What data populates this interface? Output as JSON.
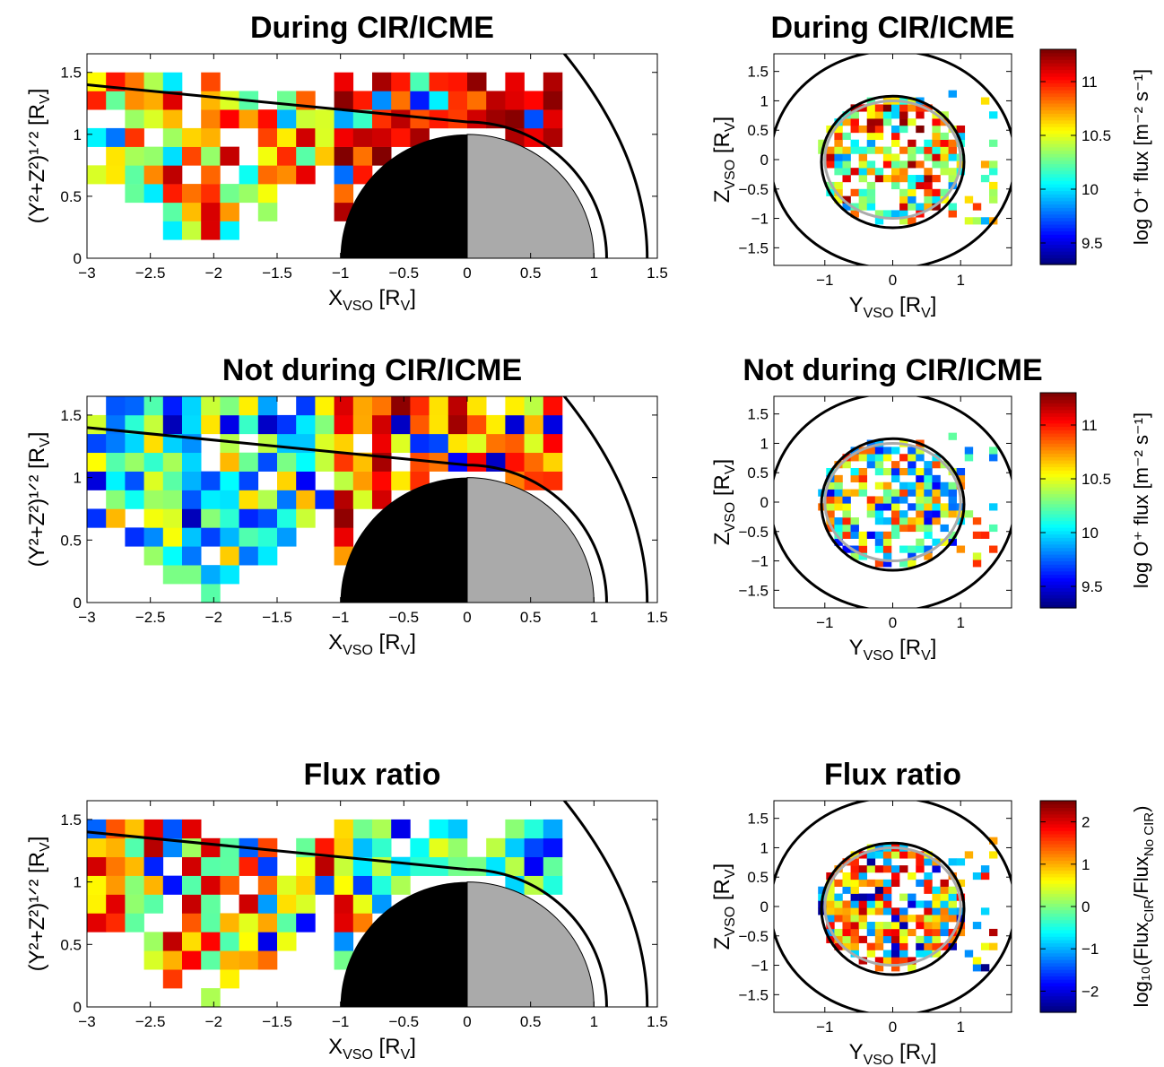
{
  "chart_data": [
    {
      "type": "heatmap",
      "title": "During CIR/ICME",
      "xlabel": {
        "main": "X",
        "sub": "VSO",
        "unit": " [R",
        "unit_sub": "V",
        "tail": "]"
      },
      "ylabel": {
        "text": "(Y²+Z²)¹ᐟ² [R",
        "sub": "V",
        "tail": "]"
      },
      "xlim": [
        -3,
        1.5
      ],
      "ylim": [
        0,
        1.65
      ],
      "xticks": [
        -3,
        -2.5,
        -2,
        -1.5,
        -1,
        -0.5,
        0,
        0.5,
        1,
        1.5
      ],
      "yticks": [
        0,
        0.5,
        1,
        1.5
      ],
      "bin": 0.15,
      "seed": 11,
      "palette": "flux",
      "cells_note": "log O+ flux values per bin (values 9.3-11.3)"
    },
    {
      "type": "heatmap",
      "title": "During CIR/ICME",
      "xlabel": {
        "main": "Y",
        "sub": "VSO",
        "unit": " [R",
        "unit_sub": "V",
        "tail": "]"
      },
      "ylabel": {
        "main": "Z",
        "sub": "VSO",
        "unit": " [R",
        "unit_sub": "V",
        "tail": "]"
      },
      "xlim": [
        -1.75,
        1.75
      ],
      "ylim": [
        -1.8,
        1.8
      ],
      "xticks": [
        -1,
        0,
        1
      ],
      "yticks": [
        -1.5,
        -1,
        -0.5,
        0,
        0.5,
        1,
        1.5
      ],
      "seed": 21,
      "palette": "flux"
    },
    {
      "type": "heatmap",
      "title": "Not during CIR/ICME",
      "xlabel": {
        "main": "X",
        "sub": "VSO",
        "unit": " [R",
        "unit_sub": "V",
        "tail": "]"
      },
      "ylabel": {
        "text": "(Y²+Z²)¹ᐟ² [R",
        "sub": "V",
        "tail": "]"
      },
      "xlim": [
        -3,
        1.5
      ],
      "ylim": [
        0,
        1.65
      ],
      "xticks": [
        -3,
        -2.5,
        -2,
        -1.5,
        -1,
        -0.5,
        0,
        0.5,
        1,
        1.5
      ],
      "yticks": [
        0,
        0.5,
        1,
        1.5
      ],
      "seed": 31,
      "palette": "flux"
    },
    {
      "type": "heatmap",
      "title": "Not during CIR/ICME",
      "xlabel": {
        "main": "Y",
        "sub": "VSO",
        "unit": " [R",
        "unit_sub": "V",
        "tail": "]"
      },
      "ylabel": {
        "main": "Z",
        "sub": "VSO",
        "unit": " [R",
        "unit_sub": "V",
        "tail": "]"
      },
      "xlim": [
        -1.75,
        1.75
      ],
      "ylim": [
        -1.8,
        1.8
      ],
      "xticks": [
        -1,
        0,
        1
      ],
      "yticks": [
        -1.5,
        -1,
        -0.5,
        0,
        0.5,
        1,
        1.5
      ],
      "seed": 41,
      "palette": "flux"
    },
    {
      "type": "heatmap",
      "title": "Flux ratio",
      "xlabel": {
        "main": "X",
        "sub": "VSO",
        "unit": " [R",
        "unit_sub": "V",
        "tail": "]"
      },
      "ylabel": {
        "text": "(Y²+Z²)¹ᐟ² [R",
        "sub": "V",
        "tail": "]"
      },
      "xlim": [
        -3,
        1.5
      ],
      "ylim": [
        0,
        1.65
      ],
      "xticks": [
        -3,
        -2.5,
        -2,
        -1.5,
        -1,
        -0.5,
        0,
        0.5,
        1,
        1.5
      ],
      "yticks": [
        0,
        0.5,
        1,
        1.5
      ],
      "seed": 51,
      "palette": "ratio"
    },
    {
      "type": "heatmap",
      "title": "Flux ratio",
      "xlabel": {
        "main": "Y",
        "sub": "VSO",
        "unit": " [R",
        "unit_sub": "V",
        "tail": "]"
      },
      "ylabel": {
        "main": "Z",
        "sub": "VSO",
        "unit": " [R",
        "unit_sub": "V",
        "tail": "]"
      },
      "xlim": [
        -1.75,
        1.75
      ],
      "ylim": [
        -1.8,
        1.8
      ],
      "xticks": [
        -1,
        0,
        1
      ],
      "yticks": [
        -1.5,
        -1,
        -0.5,
        0,
        0.5,
        1,
        1.5
      ],
      "seed": 61,
      "palette": "ratio"
    }
  ],
  "colorbars": [
    {
      "label": "log O⁺ flux  [m⁻² s⁻¹]",
      "range": [
        9.3,
        11.3
      ],
      "ticks": [
        9.5,
        10,
        10.5,
        11
      ]
    },
    {
      "label": "log O⁺ flux  [m⁻² s⁻¹]",
      "range": [
        9.3,
        11.3
      ],
      "ticks": [
        9.5,
        10,
        10.5,
        11
      ]
    },
    {
      "label": "log₁₀(Flux",
      "sub1": "CIR",
      "mid": "/Flux",
      "sub2": "No CIR",
      "tail": ")",
      "range": [
        -2.5,
        2.5
      ],
      "ticks": [
        -2,
        -1,
        0,
        1,
        2
      ]
    }
  ]
}
